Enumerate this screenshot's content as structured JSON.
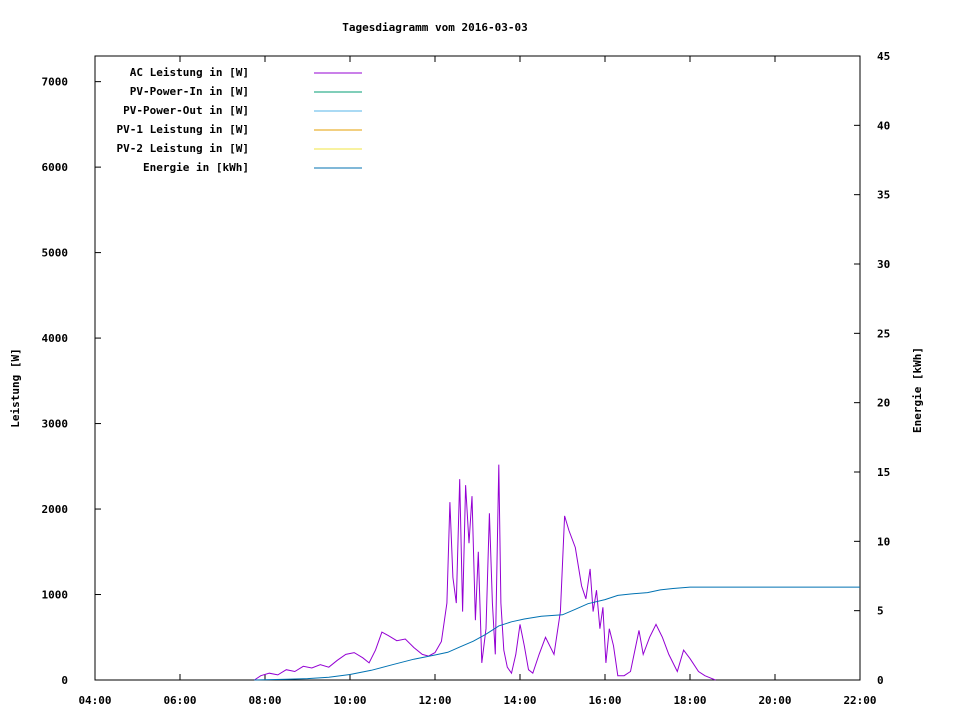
{
  "chart_data": {
    "type": "line",
    "title": "Tagesdiagramm vom 2016-03-03",
    "xlabel": "",
    "ylabel": "Leistung [W]",
    "y2label": "Energie [kWh]",
    "xlim": [
      4,
      22
    ],
    "ylim": [
      0,
      7300
    ],
    "y2lim": [
      0,
      45
    ],
    "x_ticks": [
      "04:00",
      "06:00",
      "08:00",
      "10:00",
      "12:00",
      "14:00",
      "16:00",
      "18:00",
      "20:00",
      "22:00"
    ],
    "y_ticks": [
      "0",
      "1000",
      "2000",
      "3000",
      "4000",
      "5000",
      "6000",
      "7000"
    ],
    "y2_ticks": [
      "0",
      "5",
      "10",
      "15",
      "20",
      "25",
      "30",
      "35",
      "40",
      "45"
    ],
    "grid": false,
    "legend_position": "top-left",
    "legend": [
      {
        "label": "AC Leistung in [W]",
        "color": "#9400d3"
      },
      {
        "label": "PV-Power-In in [W]",
        "color": "#009e73"
      },
      {
        "label": "PV-Power-Out in [W]",
        "color": "#56b4e9"
      },
      {
        "label": "PV-1 Leistung in [W]",
        "color": "#e69f00"
      },
      {
        "label": "PV-2 Leistung in [W]",
        "color": "#f0e442"
      },
      {
        "label": "Energie in [kWh]",
        "color": "#0072b2"
      }
    ],
    "series": [
      {
        "name": "AC Leistung in [W]",
        "axis": "left",
        "color": "#9400d3",
        "x": [
          7.75,
          7.9,
          8.1,
          8.3,
          8.5,
          8.7,
          8.9,
          9.1,
          9.3,
          9.5,
          9.7,
          9.9,
          10.1,
          10.3,
          10.45,
          10.6,
          10.75,
          10.9,
          11.1,
          11.3,
          11.5,
          11.7,
          11.85,
          12.0,
          12.15,
          12.28,
          12.35,
          12.42,
          12.5,
          12.58,
          12.65,
          12.72,
          12.8,
          12.87,
          12.95,
          13.02,
          13.1,
          13.2,
          13.28,
          13.35,
          13.42,
          13.5,
          13.55,
          13.62,
          13.7,
          13.8,
          13.9,
          14.0,
          14.1,
          14.2,
          14.3,
          14.45,
          14.6,
          14.8,
          14.95,
          15.05,
          15.15,
          15.3,
          15.45,
          15.55,
          15.65,
          15.72,
          15.8,
          15.88,
          15.95,
          16.02,
          16.1,
          16.2,
          16.3,
          16.45,
          16.6,
          16.8,
          16.9,
          17.05,
          17.2,
          17.35,
          17.5,
          17.7,
          17.85,
          18.0,
          18.2,
          18.35,
          18.5,
          18.6
        ],
        "values": [
          0,
          50,
          80,
          60,
          120,
          100,
          160,
          140,
          180,
          150,
          230,
          300,
          320,
          260,
          200,
          350,
          560,
          520,
          460,
          480,
          380,
          300,
          280,
          320,
          450,
          900,
          2080,
          1200,
          900,
          2350,
          800,
          2280,
          1600,
          2150,
          700,
          1500,
          200,
          600,
          1950,
          900,
          300,
          2520,
          900,
          350,
          150,
          80,
          300,
          650,
          400,
          120,
          80,
          300,
          500,
          300,
          800,
          1920,
          1750,
          1550,
          1100,
          950,
          1300,
          800,
          1050,
          600,
          850,
          200,
          600,
          400,
          50,
          50,
          100,
          580,
          300,
          500,
          650,
          500,
          300,
          100,
          350,
          250,
          100,
          50,
          20,
          0
        ]
      },
      {
        "name": "Energie in [kWh]",
        "axis": "right",
        "color": "#0072b2",
        "x": [
          7.75,
          8.5,
          9.0,
          9.5,
          10.0,
          10.5,
          11.0,
          11.5,
          12.0,
          12.3,
          12.6,
          12.9,
          13.2,
          13.5,
          13.8,
          14.1,
          14.5,
          15.0,
          15.3,
          15.6,
          16.0,
          16.3,
          16.6,
          17.0,
          17.3,
          17.6,
          18.0,
          18.5,
          19.0,
          20.0,
          22.0
        ],
        "values": [
          0,
          0.05,
          0.1,
          0.2,
          0.4,
          0.7,
          1.1,
          1.5,
          1.8,
          2.0,
          2.4,
          2.8,
          3.3,
          3.9,
          4.2,
          4.4,
          4.6,
          4.7,
          5.1,
          5.5,
          5.8,
          6.1,
          6.2,
          6.3,
          6.5,
          6.6,
          6.7,
          6.7,
          6.7,
          6.7,
          6.7
        ]
      }
    ]
  }
}
